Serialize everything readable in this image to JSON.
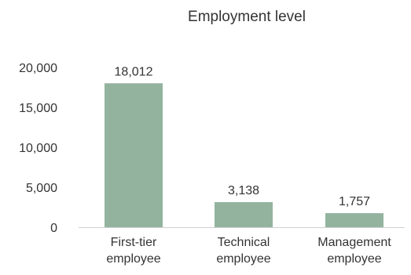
{
  "chart_data": {
    "type": "bar",
    "title": "Employment level",
    "categories": [
      [
        "First-tier",
        "employee"
      ],
      [
        "Technical",
        "employee"
      ],
      [
        "Management",
        "employee"
      ]
    ],
    "values": [
      18012,
      3138,
      1757
    ],
    "value_labels": [
      "18,012",
      "3,138",
      "1,757"
    ],
    "y_ticks": [
      0,
      5000,
      10000,
      15000,
      20000
    ],
    "y_tick_labels": [
      "0",
      "5,000",
      "10,000",
      "15,000",
      "20,000"
    ],
    "ylim": [
      0,
      20000
    ],
    "grid": false,
    "legend": "none",
    "bar_color": "#93b39f",
    "axis_color": "#d0d0d0"
  }
}
